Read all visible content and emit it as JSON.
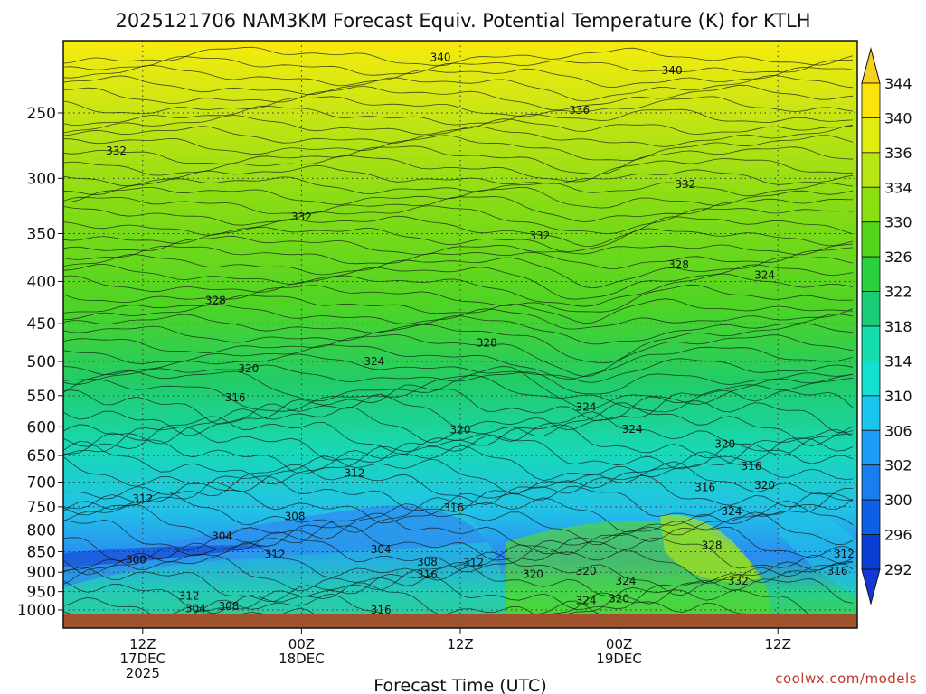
{
  "chart_data": {
    "type": "heatmap",
    "title": "2025121706 NAM3KM Forecast Equiv. Potential Temperature (K) for KTLH",
    "xlabel": "Forecast Time (UTC)",
    "ylabel": "",
    "y_scale": "log",
    "y_reversed": true,
    "y_ticks": [
      250,
      300,
      350,
      400,
      450,
      500,
      550,
      600,
      650,
      700,
      750,
      800,
      850,
      900,
      950,
      1000
    ],
    "ylim": [
      1000,
      200
    ],
    "x_ticks": [
      {
        "hour": 12,
        "lines": [
          "12Z",
          "17DEC",
          "2025"
        ]
      },
      {
        "hour": 24,
        "lines": [
          "00Z",
          "18DEC"
        ]
      },
      {
        "hour": 36,
        "lines": [
          "12Z"
        ]
      },
      {
        "hour": 48,
        "lines": [
          "00Z",
          "19DEC"
        ]
      },
      {
        "hour": 60,
        "lines": [
          "12Z"
        ]
      }
    ],
    "xlim": [
      6,
      66
    ],
    "colorbar": {
      "levels": [
        292,
        296,
        300,
        302,
        306,
        310,
        314,
        318,
        322,
        326,
        330,
        334,
        336,
        340,
        344
      ],
      "colors": [
        "#0a3fd6",
        "#0f5ee6",
        "#1a7ef0",
        "#1f9cf6",
        "#19c6ee",
        "#14e0d2",
        "#14dcaa",
        "#1ccd78",
        "#2ccf3e",
        "#52d51a",
        "#8cdf10",
        "#b8e612",
        "#e2ec10",
        "#fbe40c"
      ],
      "unit": "K"
    },
    "grid": true,
    "contour_labels": [
      {
        "value": "340",
        "t": 34.5,
        "p": 214
      },
      {
        "value": "340",
        "t": 52.0,
        "p": 222
      },
      {
        "value": "336",
        "t": 45.0,
        "p": 248
      },
      {
        "value": "332",
        "t": 10.0,
        "p": 278
      },
      {
        "value": "332",
        "t": 24.0,
        "p": 334
      },
      {
        "value": "332",
        "t": 42.0,
        "p": 352
      },
      {
        "value": "332",
        "t": 53.0,
        "p": 305
      },
      {
        "value": "328",
        "t": 17.5,
        "p": 422
      },
      {
        "value": "328",
        "t": 38.0,
        "p": 475
      },
      {
        "value": "328",
        "t": 52.5,
        "p": 382
      },
      {
        "value": "324",
        "t": 59.0,
        "p": 393
      },
      {
        "value": "324",
        "t": 29.5,
        "p": 500
      },
      {
        "value": "324",
        "t": 45.5,
        "p": 568
      },
      {
        "value": "324",
        "t": 49.0,
        "p": 604
      },
      {
        "value": "320",
        "t": 20.0,
        "p": 510
      },
      {
        "value": "316",
        "t": 19.0,
        "p": 553
      },
      {
        "value": "320",
        "t": 36.0,
        "p": 605
      },
      {
        "value": "320",
        "t": 56.0,
        "p": 630
      },
      {
        "value": "316",
        "t": 58.0,
        "p": 670
      },
      {
        "value": "320",
        "t": 59.0,
        "p": 706
      },
      {
        "value": "316",
        "t": 54.5,
        "p": 711
      },
      {
        "value": "324",
        "t": 56.5,
        "p": 760
      },
      {
        "value": "312",
        "t": 12.0,
        "p": 733
      },
      {
        "value": "312",
        "t": 28.0,
        "p": 683
      },
      {
        "value": "316",
        "t": 35.5,
        "p": 752
      },
      {
        "value": "308",
        "t": 23.5,
        "p": 770
      },
      {
        "value": "304",
        "t": 18.0,
        "p": 814
      },
      {
        "value": "304",
        "t": 30.0,
        "p": 845
      },
      {
        "value": "300",
        "t": 11.5,
        "p": 870
      },
      {
        "value": "312",
        "t": 22.0,
        "p": 856
      },
      {
        "value": "308",
        "t": 33.5,
        "p": 875
      },
      {
        "value": "312",
        "t": 37.0,
        "p": 876
      },
      {
        "value": "316",
        "t": 33.5,
        "p": 906
      },
      {
        "value": "320",
        "t": 41.5,
        "p": 905
      },
      {
        "value": "320",
        "t": 45.5,
        "p": 897
      },
      {
        "value": "324",
        "t": 48.5,
        "p": 922
      },
      {
        "value": "328",
        "t": 55.0,
        "p": 835
      },
      {
        "value": "332",
        "t": 57.0,
        "p": 923
      },
      {
        "value": "312",
        "t": 65.0,
        "p": 855
      },
      {
        "value": "316",
        "t": 64.5,
        "p": 897
      },
      {
        "value": "312",
        "t": 15.5,
        "p": 962
      },
      {
        "value": "324",
        "t": 45.5,
        "p": 974
      },
      {
        "value": "320",
        "t": 48.0,
        "p": 969
      },
      {
        "value": "304",
        "t": 16.0,
        "p": 996
      },
      {
        "value": "308",
        "t": 18.5,
        "p": 990
      },
      {
        "value": "316",
        "t": 30.0,
        "p": 1000
      }
    ]
  },
  "footer": {
    "credit": "coolwx.com/models"
  }
}
